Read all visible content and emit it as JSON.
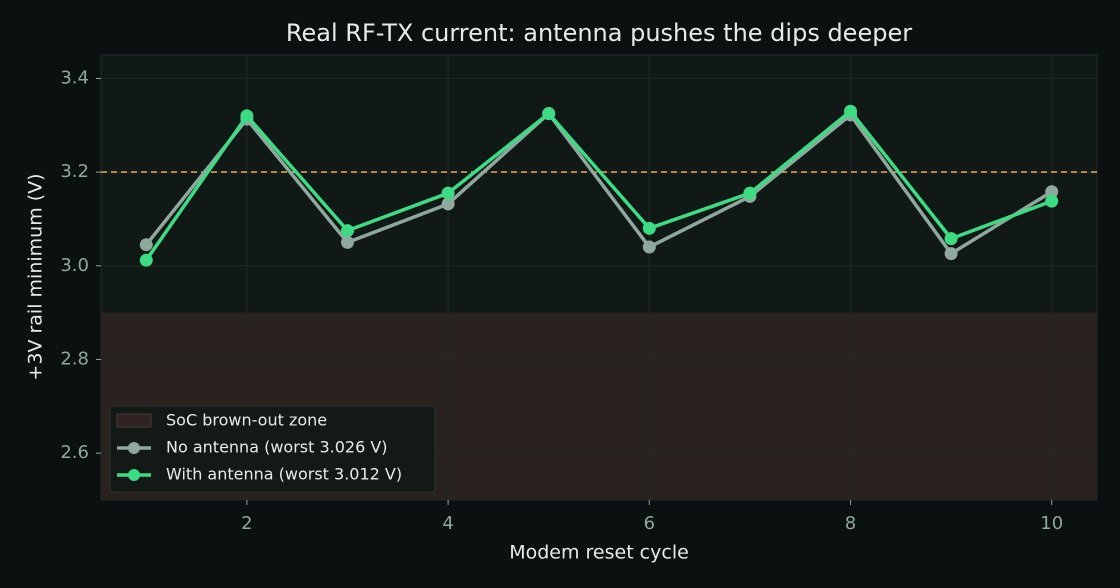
{
  "chart_data": {
    "type": "line",
    "title": "Real RF-TX current: antenna pushes the dips deeper",
    "x_label": "Modem reset cycle",
    "y_label": "+3V rail minimum (V)",
    "x": [
      1,
      2,
      3,
      4,
      5,
      6,
      7,
      8,
      9,
      10
    ],
    "series": [
      {
        "name": "No antenna (worst 3.026 V)",
        "color": "#8fa89e",
        "values": [
          3.045,
          3.313,
          3.05,
          3.132,
          3.325,
          3.04,
          3.148,
          3.322,
          3.026,
          3.158
        ]
      },
      {
        "name": "With antenna (worst 3.012 V)",
        "color": "#3ddc84",
        "values": [
          3.012,
          3.32,
          3.075,
          3.155,
          3.325,
          3.08,
          3.155,
          3.33,
          3.058,
          3.138
        ]
      }
    ],
    "zone": {
      "name": "SoC brown-out zone",
      "range": [
        2.5,
        2.9
      ],
      "color": "#2e2320"
    },
    "threshold": {
      "value": 3.2,
      "color": "#d9a05b"
    },
    "xlim": [
      0.55,
      10.45
    ],
    "ylim": [
      2.5,
      3.45
    ],
    "xticks": [
      2,
      4,
      6,
      8,
      10
    ],
    "yticks": [
      2.6,
      2.8,
      {
        "value": 3,
        "label": "3.0"
      },
      3.2,
      3.4
    ],
    "grid": true,
    "legend": "lower left"
  }
}
